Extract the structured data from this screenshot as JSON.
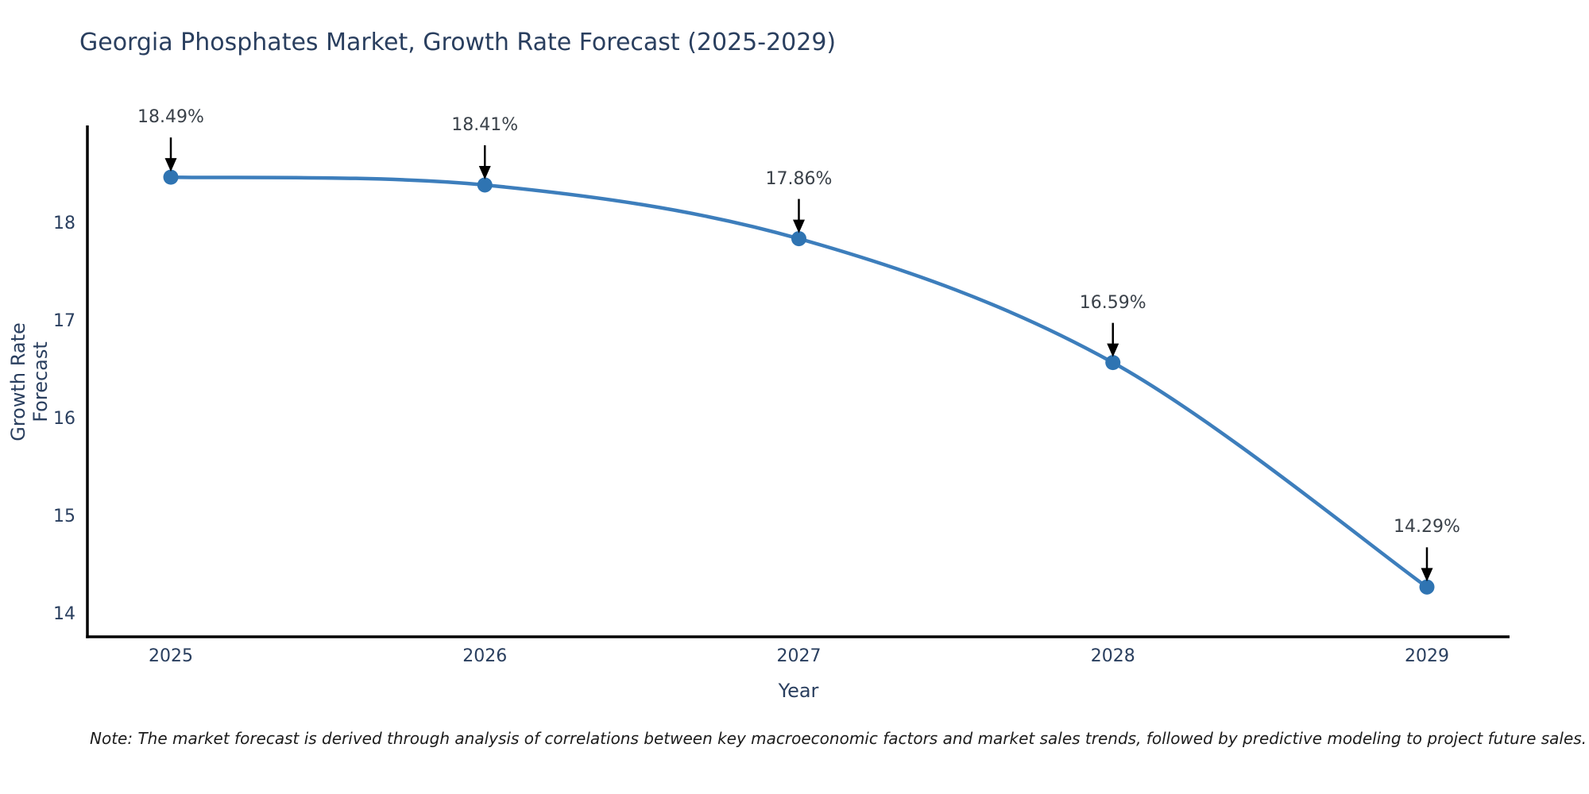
{
  "header": {
    "title": "Georgia Phosphates Market, Growth Rate Forecast (2025-2029)"
  },
  "chart_data": {
    "type": "line",
    "line_shape": "spline",
    "title": "Georgia Phosphates Market, Growth Rate Forecast (2025-2029)",
    "xlabel": "Year",
    "ylabel": "Growth Rate Forecast",
    "categories": [
      "2025",
      "2026",
      "2027",
      "2028",
      "2029"
    ],
    "series": [
      {
        "name": "Growth Rate Forecast",
        "values": [
          18.49,
          18.41,
          17.86,
          16.59,
          14.29
        ],
        "point_labels": [
          "18.49%",
          "18.41%",
          "17.86%",
          "16.59%",
          "14.29%"
        ]
      }
    ],
    "yticks": [
      14,
      15,
      16,
      17,
      18
    ],
    "ylim": [
      13.78,
      19.02
    ],
    "grid": false,
    "legend_position": "none",
    "annotations_have_arrows": true,
    "colors": {
      "line": "#3d7ebc",
      "marker": "#2f74b2",
      "axis": "#000000",
      "axis_text": "#2a3f5f",
      "annotation_text": "#3a4149",
      "arrow": "#000000",
      "background": "#ffffff"
    }
  },
  "note": {
    "text": "Note: The market forecast is derived through analysis of correlations between key macroeconomic factors and market sales trends, followed by predictive modeling to project future sales."
  }
}
